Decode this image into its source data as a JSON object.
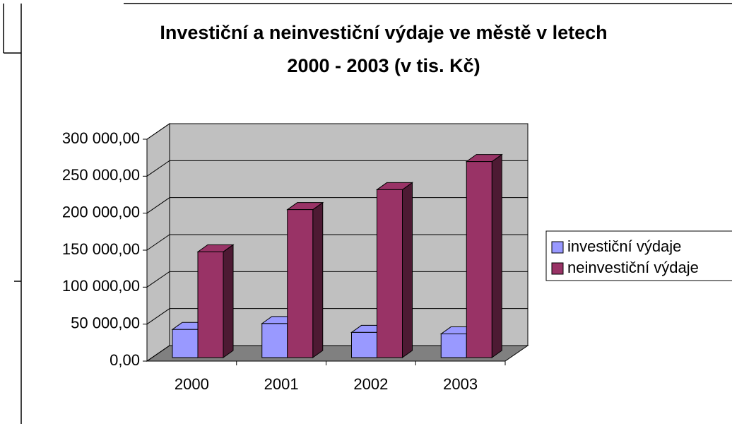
{
  "chart_data": {
    "type": "bar3d",
    "title": [
      "Investiční a neinvestiční výdaje ve městě v letech",
      "2000 - 2003 (v tis. Kč)"
    ],
    "categories": [
      "2000",
      "2001",
      "2002",
      "2003"
    ],
    "series": [
      {
        "name": "investiční výdaje",
        "color": "#9999ff",
        "values": [
          38000,
          46000,
          34000,
          32000
        ]
      },
      {
        "name": "neinvestiční výdaje",
        "color": "#993366",
        "values": [
          143000,
          200000,
          227000,
          265000
        ]
      }
    ],
    "ylim": [
      0,
      300000
    ],
    "yticks": [
      {
        "value": 0,
        "label": "0,00"
      },
      {
        "value": 50000,
        "label": "50 000,00"
      },
      {
        "value": 100000,
        "label": "100 000,00"
      },
      {
        "value": 150000,
        "label": "150 000,00"
      },
      {
        "value": 200000,
        "label": "200 000,00"
      },
      {
        "value": 250000,
        "label": "250 000,00"
      },
      {
        "value": 300000,
        "label": "300 000,00"
      }
    ],
    "grid": true,
    "legend": "right"
  }
}
